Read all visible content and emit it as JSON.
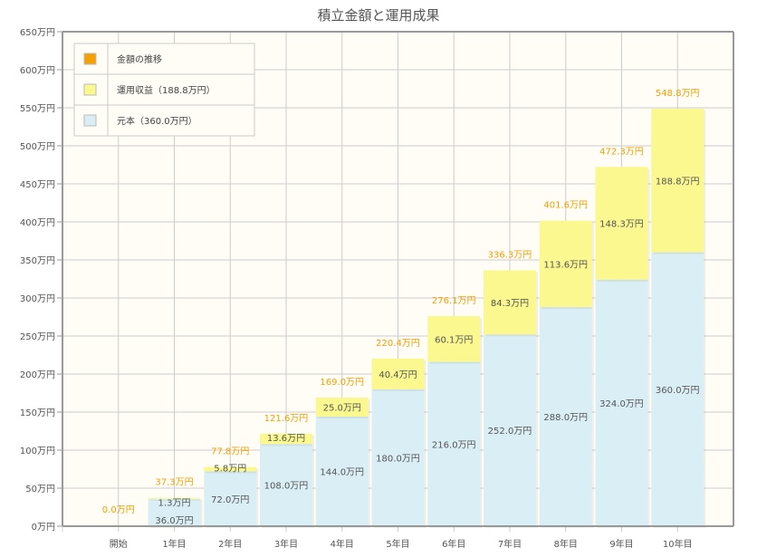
{
  "chart_data": {
    "type": "bar",
    "stacked": true,
    "title": "積立金額と運用成果",
    "xlabel": "",
    "ylabel": "",
    "ylim": [
      0,
      650
    ],
    "y_ticks": [
      0,
      50,
      100,
      150,
      200,
      250,
      300,
      350,
      400,
      450,
      500,
      550,
      600,
      650
    ],
    "y_unit": "万円",
    "grid": true,
    "legend_position": "top-left",
    "categories": [
      "開始",
      "1年目",
      "2年目",
      "3年目",
      "4年目",
      "5年目",
      "6年目",
      "7年目",
      "8年目",
      "9年目",
      "10年目"
    ],
    "series": [
      {
        "name": "元本（360.0万円）",
        "color": "#daeef6",
        "values": [
          0,
          36.0,
          72.0,
          108.0,
          144.0,
          180.0,
          216.0,
          252.0,
          288.0,
          324.0,
          360.0
        ]
      },
      {
        "name": "運用収益（188.8万円）",
        "color": "#fbf88f",
        "values": [
          0,
          1.3,
          5.8,
          13.6,
          25.0,
          40.4,
          60.1,
          84.3,
          113.6,
          148.3,
          188.8
        ]
      }
    ],
    "totals": {
      "name": "金額の推移",
      "color": "#f5a000",
      "values": [
        0.0,
        37.3,
        77.8,
        121.6,
        169.0,
        220.4,
        276.1,
        336.3,
        401.6,
        472.3,
        548.8
      ]
    },
    "legend": [
      "金額の推移",
      "運用収益（188.8万円）",
      "元本（360.0万円）"
    ]
  }
}
